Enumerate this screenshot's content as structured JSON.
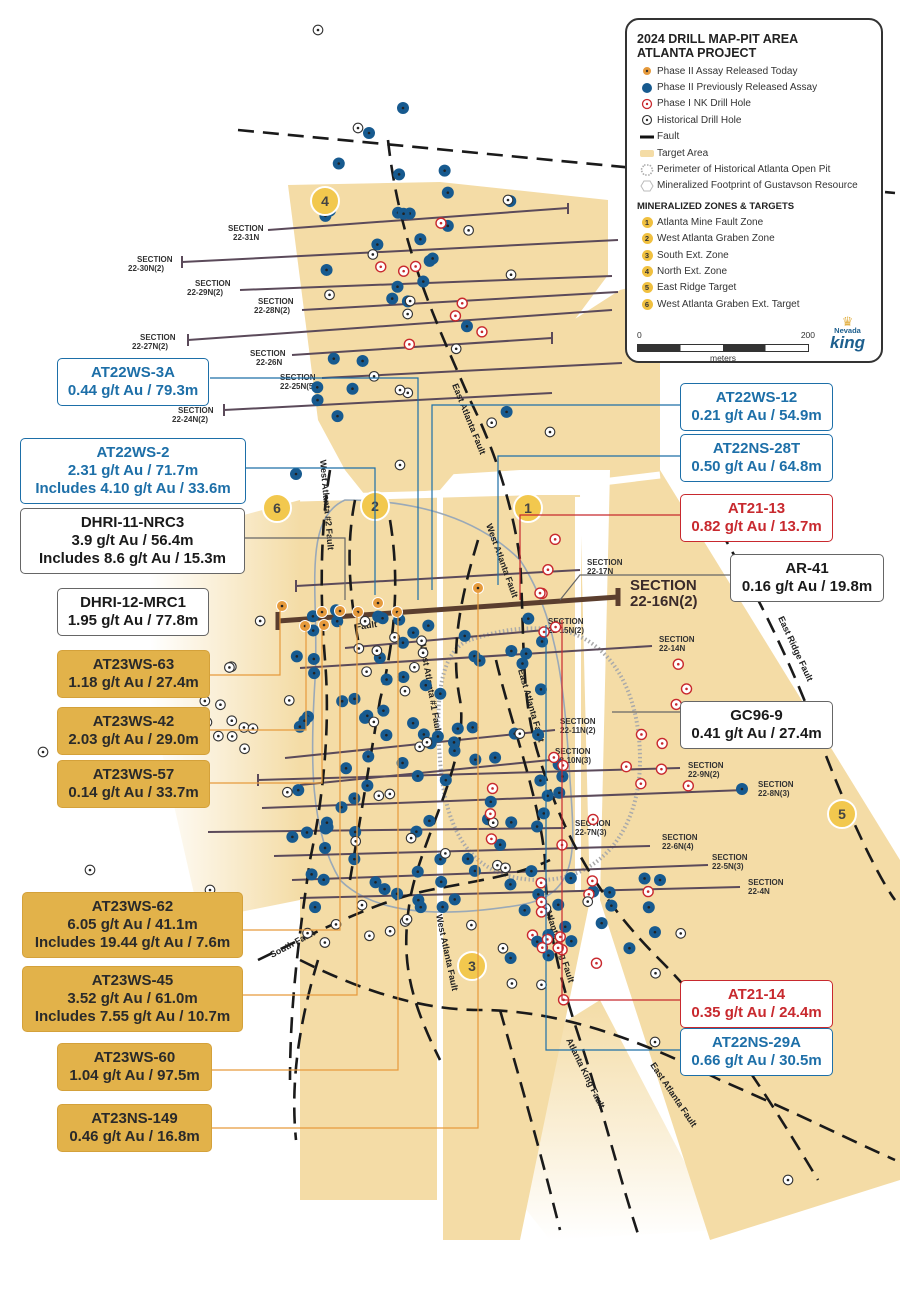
{
  "legend": {
    "title_line1": "2024 DRILL MAP-PIT AREA",
    "title_line2": "ATLANTA PROJECT",
    "items": [
      "Phase II Assay Released Today",
      "Phase II Previously Released Assay",
      "Phase I NK Drill Hole",
      "Historical Drill Hole",
      "Fault",
      "Target Area",
      "Perimeter of Historical Atlanta Open Pit",
      "Mineralized Footprint of Gustavson Resource"
    ],
    "zones_heading": "MINERALIZED ZONES & TARGETS",
    "zones": [
      {
        "num": "1",
        "label": "Atlanta Mine Fault Zone"
      },
      {
        "num": "2",
        "label": "West Atlanta Graben Zone"
      },
      {
        "num": "3",
        "label": "South Ext. Zone"
      },
      {
        "num": "4",
        "label": "North Ext. Zone"
      },
      {
        "num": "5",
        "label": "East Ridge Target"
      },
      {
        "num": "6",
        "label": "West Atlanta Graben Ext. Target"
      }
    ],
    "scale_left": "0",
    "scale_right": "200",
    "scale_unit": "meters",
    "logo_top": "Nevada",
    "logo_bottom": "king"
  },
  "colors": {
    "target_area": "#f4dca6",
    "released_today": "#e69a3c",
    "previously_released": "#175a8f",
    "phase1": "#c8292e",
    "gold_callout": "#e2b24a",
    "blue_text": "#1d6fa8",
    "red_text": "#c8292e"
  },
  "sections": [
    {
      "line1": "SECTION",
      "line2": "22-31N"
    },
    {
      "line1": "SECTION",
      "line2": "22-30N(2)"
    },
    {
      "line1": "SECTION",
      "line2": "22-29N(2)"
    },
    {
      "line1": "SECTION",
      "line2": "22-28N(2)"
    },
    {
      "line1": "SECTION",
      "line2": "22-27N(2)"
    },
    {
      "line1": "SECTION",
      "line2": "22-26N"
    },
    {
      "line1": "SECTION",
      "line2": "22-25N(5)"
    },
    {
      "line1": "SECTION",
      "line2": "22-24N(2)"
    },
    {
      "line1": "SECTION",
      "line2": "22-17N"
    },
    {
      "line1": "SECTION",
      "line2": "22-16N(2)"
    },
    {
      "line1": "SECTION",
      "line2": "22-15N(2)"
    },
    {
      "line1": "SECTION",
      "line2": "22-14N"
    },
    {
      "line1": "SECTION",
      "line2": "22-11N(2)"
    },
    {
      "line1": "SECTION",
      "line2": "22-10N(3)"
    },
    {
      "line1": "SECTION",
      "line2": "22-9N(2)"
    },
    {
      "line1": "SECTION",
      "line2": "22-8N(3)"
    },
    {
      "line1": "SECTION",
      "line2": "22-7N(3)"
    },
    {
      "line1": "SECTION",
      "line2": "22-6N(4)"
    },
    {
      "line1": "SECTION",
      "line2": "22-5N(3)"
    },
    {
      "line1": "SECTION",
      "line2": "22-4N"
    }
  ],
  "zone_markers": [
    "1",
    "2",
    "3",
    "4",
    "5",
    "6"
  ],
  "faults": {
    "east_atlanta": "East Atlanta Fault",
    "west_atlanta": "West Atlanta Fault",
    "west_atlanta_2": "West Atlanta #2 Fault",
    "west_atlanta_1": "West Atlanta #1 Fault",
    "atlanta_king": "Atlanta King Fault",
    "east_ridge": "East Ridge Fault",
    "south": "South Fault",
    "fault": "Fault"
  },
  "callouts": [
    {
      "lines": [
        "AT22WS-3A",
        "0.44 g/t Au / 79.3m"
      ]
    },
    {
      "lines": [
        "AT22WS-12",
        "0.21 g/t Au / 54.9m"
      ]
    },
    {
      "lines": [
        "AT22WS-2",
        "2.31 g/t Au / 71.7m",
        "Includes 4.10 g/t Au / 33.6m"
      ]
    },
    {
      "lines": [
        "AT22NS-28T",
        "0.50 g/t Au / 64.8m"
      ]
    },
    {
      "lines": [
        "AT21-13",
        "0.82 g/t Au / 13.7m"
      ]
    },
    {
      "lines": [
        "DHRI-11-NRC3",
        "3.9 g/t Au / 56.4m",
        "Includes 8.6 g/t Au / 15.3m"
      ]
    },
    {
      "lines": [
        "AR-41",
        "0.16 g/t Au / 19.8m"
      ]
    },
    {
      "lines": [
        "DHRI-12-MRC1",
        "1.95 g/t Au / 77.8m"
      ]
    },
    {
      "lines": [
        "AT23WS-63",
        "1.18 g/t Au / 27.4m"
      ]
    },
    {
      "lines": [
        "AT23WS-42",
        "2.03 g/t Au / 29.0m"
      ]
    },
    {
      "lines": [
        "GC96-9",
        "0.41 g/t Au / 27.4m"
      ]
    },
    {
      "lines": [
        "AT23WS-57",
        "0.14 g/t Au / 33.7m"
      ]
    },
    {
      "lines": [
        "AT23WS-62",
        "6.05 g/t Au / 41.1m",
        "Includes 19.44 g/t Au / 7.6m"
      ]
    },
    {
      "lines": [
        "AT23WS-45",
        "3.52 g/t Au / 61.0m",
        "Includes 7.55 g/t Au / 10.7m"
      ]
    },
    {
      "lines": [
        "AT21-14",
        "0.35 g/t Au / 24.4m"
      ]
    },
    {
      "lines": [
        "AT22NS-29A",
        "0.66 g/t Au / 30.5m"
      ]
    },
    {
      "lines": [
        "AT23WS-60",
        "1.04 g/t Au / 97.5m"
      ]
    },
    {
      "lines": [
        "AT23NS-149",
        "0.46 g/t Au / 16.8m"
      ]
    }
  ]
}
